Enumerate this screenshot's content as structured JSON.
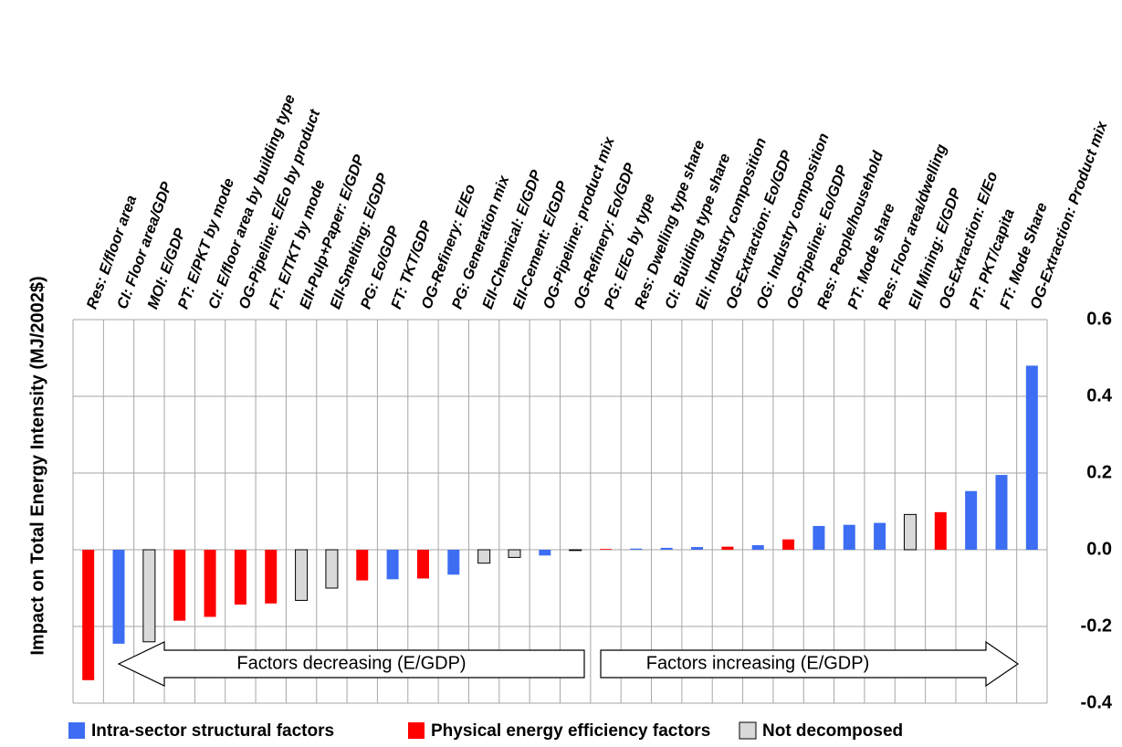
{
  "chart_data": {
    "type": "bar",
    "y_label": "Impact on Total Energy Intensity (MJ/2002$)",
    "categories": [
      "Res: E/floor area",
      "CI: Floor area/GDP",
      "MOI: E/GDP",
      "PT: E/PKT by mode",
      "CI: E/floor area by building type",
      "OG-Pipeline: E/Eo by product",
      "FT:  E/TKT by mode",
      "EII-Pulp+Paper: E/GDP",
      "EII-Smelting: E/GDP",
      "PG: Eo/GDP",
      "FT:  TKT/GDP",
      "OG-Refinery: E/Eo",
      "PG: Generation mix",
      "EII-Chemical: E/GDP",
      "EII-Cement: E/GDP",
      "OG-Pipeline: product mix",
      "OG-Refinery: Eo/GDP",
      "PG:  E/Eo by type",
      "Res: Dwelling type share",
      "CI: Building type share",
      "EII: Industry composition",
      "OG-Extraction: Eo/GDP",
      "OG: Industry composition",
      "OG-Pipeline: Eo/GDP",
      "Res: People/household",
      "PT: Mode share",
      "Res: Floor area/dwelling",
      "EII Mining: E/GDP",
      "OG-Extraction: E/Eo",
      "PT: PKT/capita",
      "FT:  Mode Share",
      "OG-Extraction: Product mix"
    ],
    "series": [
      {
        "name": "Intra-sector structural factors",
        "color": "#3d6df2",
        "values": [
          null,
          -0.245,
          null,
          null,
          null,
          null,
          null,
          null,
          null,
          null,
          -0.077,
          null,
          -0.065,
          null,
          null,
          -0.015,
          null,
          null,
          0.003,
          0.005,
          0.007,
          null,
          0.012,
          null,
          0.062,
          0.065,
          0.07,
          null,
          null,
          0.153,
          0.195,
          0.48
        ]
      },
      {
        "name": "Physical energy efficiency factors",
        "color": "#ff0000",
        "values": [
          -0.34,
          null,
          null,
          -0.185,
          -0.175,
          -0.143,
          -0.14,
          null,
          null,
          -0.08,
          null,
          -0.075,
          null,
          null,
          null,
          null,
          null,
          0.002,
          null,
          null,
          null,
          0.008,
          null,
          0.027,
          null,
          null,
          null,
          null,
          0.098,
          null,
          null,
          null
        ]
      },
      {
        "name": "Not decomposed",
        "color": "#d9d9d9",
        "values": [
          null,
          null,
          -0.24,
          null,
          null,
          null,
          null,
          -0.132,
          -0.1,
          null,
          null,
          null,
          null,
          -0.035,
          -0.02,
          null,
          -0.002,
          null,
          null,
          null,
          null,
          null,
          null,
          null,
          null,
          null,
          null,
          0.092,
          null,
          null,
          null,
          null
        ]
      }
    ],
    "ylim": [
      -0.4,
      0.6
    ],
    "yticks": [
      -0.4,
      -0.2,
      {
        "value": 0,
        "label": "0.0"
      },
      0.2,
      0.4,
      0.6
    ],
    "grid": true,
    "annotations": [
      "Factors decreasing (E/GDP)",
      "Factors increasing (E/GDP)"
    ]
  }
}
